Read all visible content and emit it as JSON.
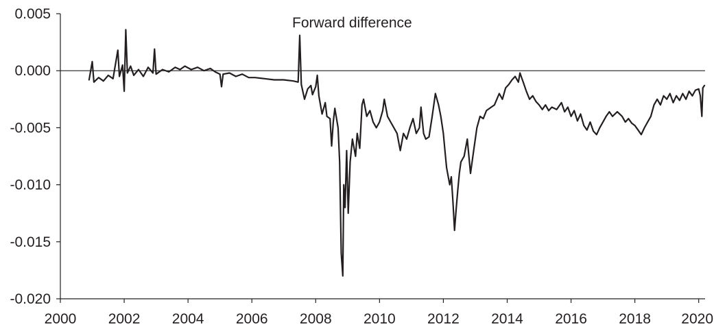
{
  "chart_data": {
    "type": "line",
    "title": "Forward difference",
    "xlabel": "",
    "ylabel": "",
    "xlim": [
      2000,
      2020.2
    ],
    "ylim": [
      -0.02,
      0.005
    ],
    "x_ticks": [
      "2000",
      "2002",
      "2004",
      "2006",
      "2008",
      "2010",
      "2012",
      "2014",
      "2016",
      "2018",
      "2020"
    ],
    "y_ticks": [
      "0.005",
      "0.000",
      "-0.005",
      "-0.010",
      "-0.015",
      "-0.020"
    ],
    "grid": false,
    "legend": "none",
    "colors": {
      "series": "#231f20",
      "axis": "#231f20"
    },
    "series": [
      {
        "values": [
          [
            2000.9,
            -0.0008
          ],
          [
            2001.0,
            0.0008
          ],
          [
            2001.05,
            -0.001
          ],
          [
            2001.2,
            -0.0006
          ],
          [
            2001.35,
            -0.0009
          ],
          [
            2001.5,
            -0.0004
          ],
          [
            2001.65,
            -0.0007
          ],
          [
            2001.8,
            0.0018
          ],
          [
            2001.85,
            -0.0005
          ],
          [
            2001.95,
            0.0005
          ],
          [
            2002.0,
            -0.0018
          ],
          [
            2002.05,
            0.0036
          ],
          [
            2002.1,
            -0.0002
          ],
          [
            2002.2,
            0.0004
          ],
          [
            2002.3,
            -0.0004
          ],
          [
            2002.45,
            0.0001
          ],
          [
            2002.6,
            -0.0005
          ],
          [
            2002.75,
            0.0003
          ],
          [
            2002.9,
            -0.0002
          ],
          [
            2002.95,
            0.0019
          ],
          [
            2003.0,
            -0.0003
          ],
          [
            2003.2,
            0.0001
          ],
          [
            2003.4,
            -0.0001
          ],
          [
            2003.6,
            0.0003
          ],
          [
            2003.75,
            0.0001
          ],
          [
            2003.9,
            0.0004
          ],
          [
            2004.1,
            0.0001
          ],
          [
            2004.3,
            0.0003
          ],
          [
            2004.5,
            0.0
          ],
          [
            2004.7,
            0.0002
          ],
          [
            2004.85,
            -0.0001
          ],
          [
            2005.0,
            -0.0003
          ],
          [
            2005.05,
            -0.0014
          ],
          [
            2005.1,
            -0.0003
          ],
          [
            2005.3,
            -0.0002
          ],
          [
            2005.5,
            -0.0005
          ],
          [
            2005.7,
            -0.0003
          ],
          [
            2005.9,
            -0.0006
          ],
          [
            2006.1,
            -0.0006
          ],
          [
            2006.4,
            -0.0007
          ],
          [
            2006.7,
            -0.0008
          ],
          [
            2007.0,
            -0.0008
          ],
          [
            2007.3,
            -0.0009
          ],
          [
            2007.45,
            -0.001
          ],
          [
            2007.5,
            0.0031
          ],
          [
            2007.55,
            -0.0012
          ],
          [
            2007.65,
            -0.0025
          ],
          [
            2007.75,
            -0.0016
          ],
          [
            2007.85,
            -0.0013
          ],
          [
            2007.9,
            -0.0021
          ],
          [
            2008.0,
            -0.0014
          ],
          [
            2008.05,
            -0.0004
          ],
          [
            2008.1,
            -0.0022
          ],
          [
            2008.2,
            -0.0038
          ],
          [
            2008.3,
            -0.0028
          ],
          [
            2008.35,
            -0.004
          ],
          [
            2008.45,
            -0.0042
          ],
          [
            2008.5,
            -0.0066
          ],
          [
            2008.55,
            -0.0045
          ],
          [
            2008.6,
            -0.0033
          ],
          [
            2008.7,
            -0.005
          ],
          [
            2008.75,
            -0.008
          ],
          [
            2008.8,
            -0.016
          ],
          [
            2008.85,
            -0.018
          ],
          [
            2008.88,
            -0.01
          ],
          [
            2008.92,
            -0.012
          ],
          [
            2008.97,
            -0.007
          ],
          [
            2009.02,
            -0.0125
          ],
          [
            2009.08,
            -0.008
          ],
          [
            2009.15,
            -0.006
          ],
          [
            2009.25,
            -0.0075
          ],
          [
            2009.3,
            -0.0055
          ],
          [
            2009.38,
            -0.0068
          ],
          [
            2009.45,
            -0.003
          ],
          [
            2009.5,
            -0.0025
          ],
          [
            2009.6,
            -0.004
          ],
          [
            2009.7,
            -0.0035
          ],
          [
            2009.8,
            -0.0045
          ],
          [
            2009.9,
            -0.005
          ],
          [
            2010.0,
            -0.0045
          ],
          [
            2010.1,
            -0.0035
          ],
          [
            2010.15,
            -0.0025
          ],
          [
            2010.25,
            -0.004
          ],
          [
            2010.35,
            -0.0045
          ],
          [
            2010.45,
            -0.005
          ],
          [
            2010.55,
            -0.0055
          ],
          [
            2010.65,
            -0.007
          ],
          [
            2010.75,
            -0.0055
          ],
          [
            2010.85,
            -0.006
          ],
          [
            2010.95,
            -0.005
          ],
          [
            2011.05,
            -0.0042
          ],
          [
            2011.15,
            -0.0055
          ],
          [
            2011.25,
            -0.005
          ],
          [
            2011.3,
            -0.0032
          ],
          [
            2011.38,
            -0.0055
          ],
          [
            2011.45,
            -0.006
          ],
          [
            2011.55,
            -0.0058
          ],
          [
            2011.65,
            -0.004
          ],
          [
            2011.75,
            -0.002
          ],
          [
            2011.85,
            -0.003
          ],
          [
            2011.92,
            -0.004
          ],
          [
            2012.0,
            -0.0055
          ],
          [
            2012.05,
            -0.007
          ],
          [
            2012.1,
            -0.0085
          ],
          [
            2012.2,
            -0.01
          ],
          [
            2012.25,
            -0.0093
          ],
          [
            2012.3,
            -0.0115
          ],
          [
            2012.35,
            -0.014
          ],
          [
            2012.4,
            -0.0122
          ],
          [
            2012.45,
            -0.0105
          ],
          [
            2012.5,
            -0.009
          ],
          [
            2012.55,
            -0.008
          ],
          [
            2012.65,
            -0.0075
          ],
          [
            2012.75,
            -0.006
          ],
          [
            2012.85,
            -0.009
          ],
          [
            2012.95,
            -0.007
          ],
          [
            2013.05,
            -0.005
          ],
          [
            2013.15,
            -0.004
          ],
          [
            2013.25,
            -0.0042
          ],
          [
            2013.35,
            -0.0035
          ],
          [
            2013.5,
            -0.0032
          ],
          [
            2013.6,
            -0.003
          ],
          [
            2013.75,
            -0.002
          ],
          [
            2013.85,
            -0.0025
          ],
          [
            2013.95,
            -0.0015
          ],
          [
            2014.05,
            -0.0012
          ],
          [
            2014.15,
            -0.0008
          ],
          [
            2014.25,
            -0.0005
          ],
          [
            2014.35,
            -0.001
          ],
          [
            2014.4,
            -0.0002
          ],
          [
            2014.5,
            -0.001
          ],
          [
            2014.6,
            -0.0018
          ],
          [
            2014.7,
            -0.0025
          ],
          [
            2014.8,
            -0.0022
          ],
          [
            2014.9,
            -0.0027
          ],
          [
            2015.0,
            -0.003
          ],
          [
            2015.1,
            -0.0034
          ],
          [
            2015.2,
            -0.003
          ],
          [
            2015.3,
            -0.0035
          ],
          [
            2015.4,
            -0.0032
          ],
          [
            2015.55,
            -0.0034
          ],
          [
            2015.7,
            -0.0028
          ],
          [
            2015.8,
            -0.0036
          ],
          [
            2015.9,
            -0.0032
          ],
          [
            2016.0,
            -0.004
          ],
          [
            2016.1,
            -0.0035
          ],
          [
            2016.2,
            -0.0044
          ],
          [
            2016.3,
            -0.0038
          ],
          [
            2016.4,
            -0.0048
          ],
          [
            2016.5,
            -0.0052
          ],
          [
            2016.6,
            -0.0045
          ],
          [
            2016.7,
            -0.0053
          ],
          [
            2016.8,
            -0.0056
          ],
          [
            2016.9,
            -0.005
          ],
          [
            2017.0,
            -0.0045
          ],
          [
            2017.1,
            -0.004
          ],
          [
            2017.2,
            -0.0036
          ],
          [
            2017.3,
            -0.004
          ],
          [
            2017.45,
            -0.0036
          ],
          [
            2017.6,
            -0.004
          ],
          [
            2017.7,
            -0.0045
          ],
          [
            2017.8,
            -0.0042
          ],
          [
            2017.9,
            -0.0046
          ],
          [
            2018.0,
            -0.0048
          ],
          [
            2018.1,
            -0.0052
          ],
          [
            2018.2,
            -0.0056
          ],
          [
            2018.3,
            -0.005
          ],
          [
            2018.4,
            -0.0045
          ],
          [
            2018.5,
            -0.004
          ],
          [
            2018.6,
            -0.003
          ],
          [
            2018.7,
            -0.0025
          ],
          [
            2018.8,
            -0.003
          ],
          [
            2018.9,
            -0.0022
          ],
          [
            2019.0,
            -0.0025
          ],
          [
            2019.1,
            -0.002
          ],
          [
            2019.2,
            -0.0028
          ],
          [
            2019.3,
            -0.0022
          ],
          [
            2019.4,
            -0.0026
          ],
          [
            2019.5,
            -0.002
          ],
          [
            2019.6,
            -0.0025
          ],
          [
            2019.7,
            -0.0018
          ],
          [
            2019.8,
            -0.0022
          ],
          [
            2019.9,
            -0.0017
          ],
          [
            2020.0,
            -0.0016
          ],
          [
            2020.05,
            -0.0022
          ],
          [
            2020.1,
            -0.004
          ],
          [
            2020.13,
            -0.0015
          ],
          [
            2020.18,
            -0.0013
          ]
        ]
      }
    ]
  }
}
